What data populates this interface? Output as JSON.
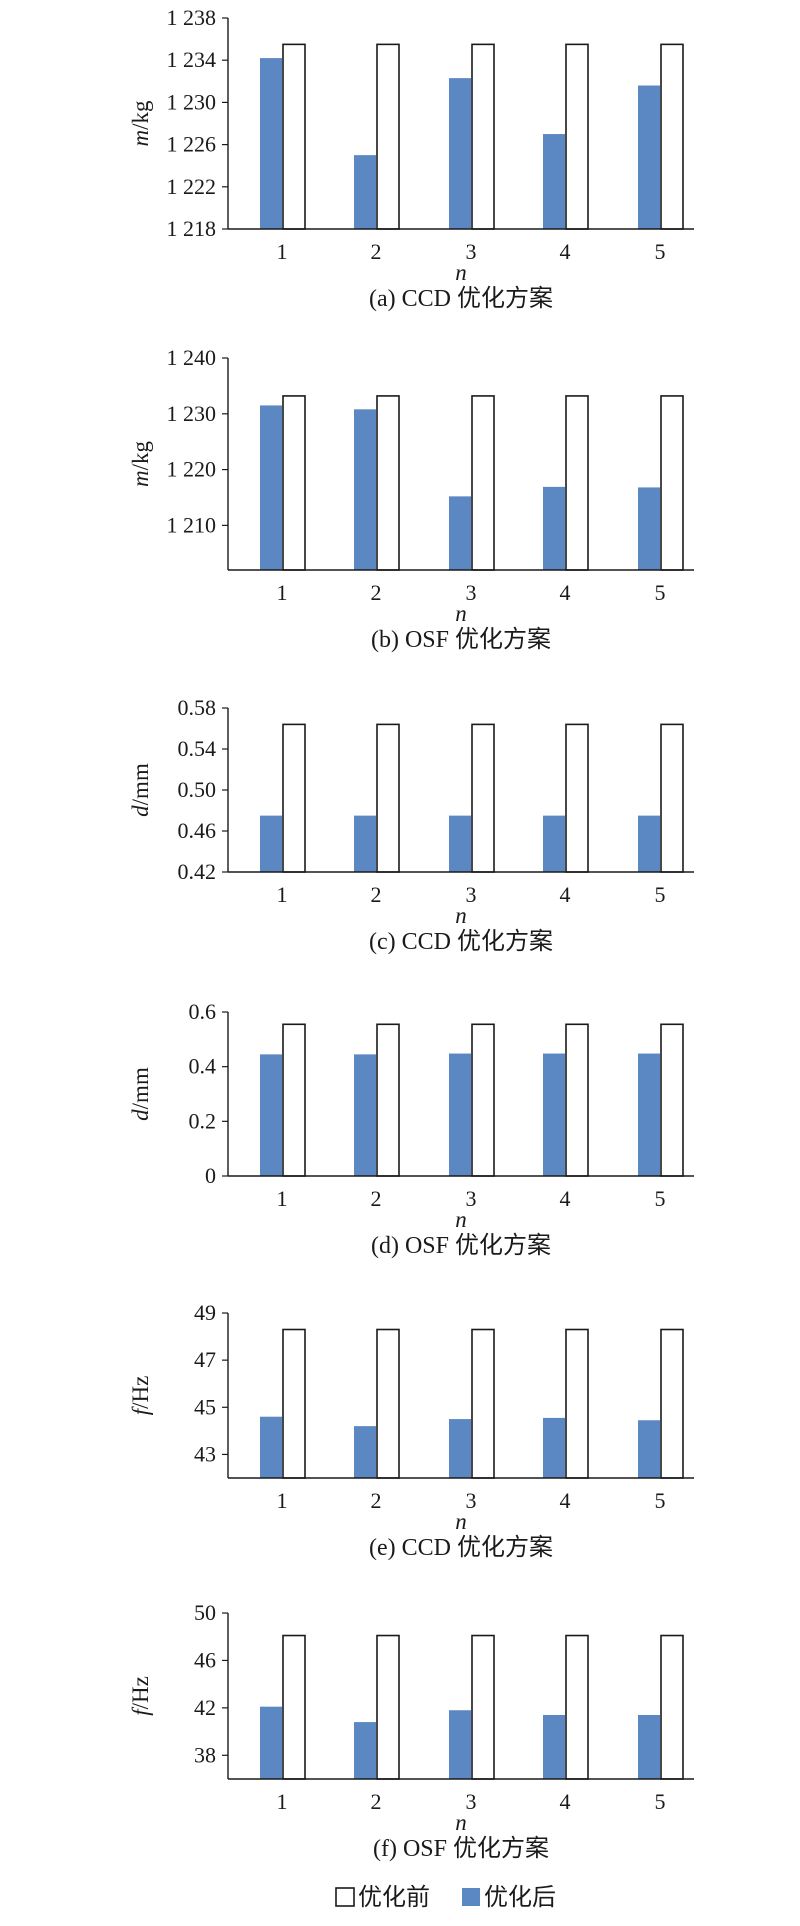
{
  "chart_data": [
    {
      "type": "bar",
      "panel": "a",
      "caption": "(a) CCD 优化方案",
      "xlabel": "n",
      "ylabel_var": "m",
      "ylabel_unit": "/kg",
      "categories": [
        "1",
        "2",
        "3",
        "4",
        "5"
      ],
      "ylim": [
        1218,
        1238
      ],
      "yticks": [
        1218,
        1222,
        1226,
        1230,
        1234,
        1238
      ],
      "ytick_labels": [
        "1 218",
        "1 222",
        "1 226",
        "1 230",
        "1 234",
        "1 238"
      ],
      "series": [
        {
          "name": "优化后",
          "values": [
            1234.2,
            1225.0,
            1232.3,
            1227.0,
            1231.6
          ]
        },
        {
          "name": "优化前",
          "values": [
            1235.5,
            1235.5,
            1235.5,
            1235.5,
            1235.5
          ]
        }
      ]
    },
    {
      "type": "bar",
      "panel": "b",
      "caption": "(b) OSF 优化方案",
      "xlabel": "n",
      "ylabel_var": "m",
      "ylabel_unit": "/kg",
      "categories": [
        "1",
        "2",
        "3",
        "4",
        "5"
      ],
      "ylim": [
        1202,
        1240
      ],
      "yticks": [
        1210,
        1220,
        1230,
        1240
      ],
      "ytick_labels": [
        "1 210",
        "1 220",
        "1 230",
        "1 240"
      ],
      "series": [
        {
          "name": "优化后",
          "values": [
            1231.5,
            1230.8,
            1215.2,
            1216.9,
            1216.8
          ]
        },
        {
          "name": "优化前",
          "values": [
            1233.2,
            1233.2,
            1233.2,
            1233.2,
            1233.2
          ]
        }
      ]
    },
    {
      "type": "bar",
      "panel": "c",
      "caption": "(c) CCD 优化方案",
      "xlabel": "n",
      "ylabel_var": "d",
      "ylabel_unit": "/mm",
      "categories": [
        "1",
        "2",
        "3",
        "4",
        "5"
      ],
      "ylim": [
        0.42,
        0.58
      ],
      "yticks": [
        0.42,
        0.46,
        0.5,
        0.54,
        0.58
      ],
      "ytick_labels": [
        "0.42",
        "0.46",
        "0.50",
        "0.54",
        "0.58"
      ],
      "series": [
        {
          "name": "优化后",
          "values": [
            0.475,
            0.475,
            0.475,
            0.475,
            0.475
          ]
        },
        {
          "name": "优化前",
          "values": [
            0.564,
            0.564,
            0.564,
            0.564,
            0.564
          ]
        }
      ]
    },
    {
      "type": "bar",
      "panel": "d",
      "caption": "(d) OSF 优化方案",
      "xlabel": "n",
      "ylabel_var": "d",
      "ylabel_unit": "/mm",
      "categories": [
        "1",
        "2",
        "3",
        "4",
        "5"
      ],
      "ylim": [
        0,
        0.6
      ],
      "yticks": [
        0,
        0.2,
        0.4,
        0.6
      ],
      "ytick_labels": [
        "0",
        "0.2",
        "0.4",
        "0.6"
      ],
      "series": [
        {
          "name": "优化后",
          "values": [
            0.445,
            0.445,
            0.448,
            0.448,
            0.448
          ]
        },
        {
          "name": "优化前",
          "values": [
            0.555,
            0.555,
            0.555,
            0.555,
            0.555
          ]
        }
      ]
    },
    {
      "type": "bar",
      "panel": "e",
      "caption": "(e) CCD 优化方案",
      "xlabel": "n",
      "ylabel_var": "f",
      "ylabel_unit": "/Hz",
      "categories": [
        "1",
        "2",
        "3",
        "4",
        "5"
      ],
      "ylim": [
        42,
        49
      ],
      "yticks": [
        43,
        45,
        47,
        49
      ],
      "ytick_labels": [
        "43",
        "45",
        "47",
        "49"
      ],
      "series": [
        {
          "name": "优化后",
          "values": [
            44.6,
            44.2,
            44.5,
            44.55,
            44.45
          ]
        },
        {
          "name": "优化前",
          "values": [
            48.3,
            48.3,
            48.3,
            48.3,
            48.3
          ]
        }
      ]
    },
    {
      "type": "bar",
      "panel": "f",
      "caption": "(f) OSF 优化方案",
      "xlabel": "n",
      "ylabel_var": "f",
      "ylabel_unit": "/Hz",
      "categories": [
        "1",
        "2",
        "3",
        "4",
        "5"
      ],
      "ylim": [
        36,
        50
      ],
      "yticks": [
        38,
        42,
        46,
        50
      ],
      "ytick_labels": [
        "38",
        "42",
        "46",
        "50"
      ],
      "series": [
        {
          "name": "优化后",
          "values": [
            42.1,
            40.8,
            41.8,
            41.4,
            41.4
          ]
        },
        {
          "name": "优化前",
          "values": [
            48.1,
            48.1,
            48.1,
            48.1,
            48.1
          ]
        }
      ]
    }
  ],
  "legend": {
    "placement": "bottom-center",
    "items": [
      {
        "label": "优化前",
        "style": "outline"
      },
      {
        "label": "优化后",
        "style": "filled"
      }
    ]
  },
  "colors": {
    "after_fill": "#5b87c2",
    "before_fill": "#ffffff",
    "before_stroke": "#1a1a1a",
    "axis": "#1a1a1a"
  }
}
